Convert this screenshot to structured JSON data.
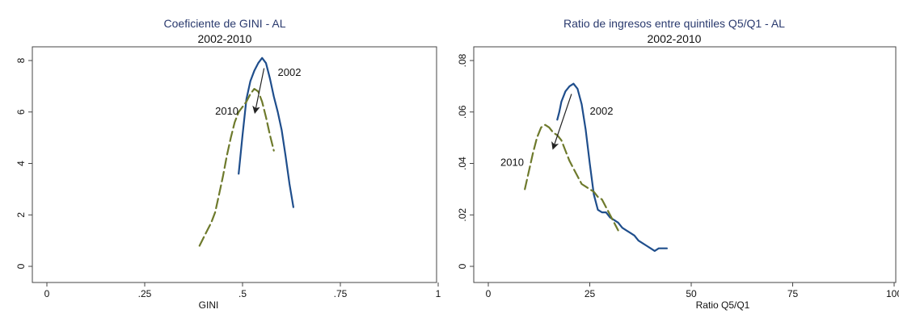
{
  "chart_data": [
    {
      "type": "line",
      "title": "Coeficiente de GINI - AL",
      "subtitle": "2002-2010",
      "xlabel": "GINI",
      "ylabel": "",
      "xlim": [
        0,
        1
      ],
      "ylim": [
        0,
        8
      ],
      "x_ticks": [
        0,
        0.25,
        0.5,
        0.75,
        1
      ],
      "x_tick_labels": [
        "0",
        ".25",
        ".5",
        ".75",
        "1"
      ],
      "y_ticks": [
        0,
        2,
        4,
        6,
        8
      ],
      "y_tick_labels": [
        "0",
        "2",
        "4",
        "6",
        "8"
      ],
      "grid": false,
      "series": [
        {
          "name": "2002",
          "color": "#1f4e8c",
          "style": "solid",
          "x": [
            0.49,
            0.5,
            0.51,
            0.52,
            0.53,
            0.54,
            0.55,
            0.56,
            0.57,
            0.58,
            0.59,
            0.6,
            0.61,
            0.62,
            0.63
          ],
          "y": [
            3.6,
            5.1,
            6.5,
            7.2,
            7.6,
            7.9,
            8.1,
            7.9,
            7.3,
            6.6,
            6.0,
            5.3,
            4.3,
            3.2,
            2.3
          ]
        },
        {
          "name": "2010",
          "color": "#6e7a2c",
          "style": "dashed",
          "x": [
            0.39,
            0.4,
            0.41,
            0.42,
            0.43,
            0.44,
            0.45,
            0.46,
            0.47,
            0.48,
            0.49,
            0.5,
            0.51,
            0.52,
            0.53,
            0.54,
            0.55,
            0.56,
            0.57,
            0.58
          ],
          "y": [
            0.8,
            1.1,
            1.4,
            1.7,
            2.1,
            2.8,
            3.5,
            4.3,
            5.0,
            5.6,
            6.0,
            6.2,
            6.4,
            6.7,
            6.9,
            6.8,
            6.4,
            5.8,
            5.1,
            4.5
          ]
        }
      ],
      "annotations": [
        {
          "text": "2002",
          "x": 0.59,
          "y": 7.4
        },
        {
          "text": "2010",
          "x": 0.43,
          "y": 5.9
        }
      ],
      "arrow": {
        "from": [
          0.555,
          7.7
        ],
        "to": [
          0.532,
          6.0
        ]
      }
    },
    {
      "type": "line",
      "title": "Ratio de ingresos entre quintiles Q5/Q1 - AL",
      "subtitle": "2002-2010",
      "xlabel": "Ratio Q5/Q1",
      "ylabel": "",
      "xlim": [
        0,
        100
      ],
      "ylim": [
        0,
        0.08
      ],
      "x_ticks": [
        0,
        25,
        50,
        75,
        100
      ],
      "x_tick_labels": [
        "0",
        "25",
        "50",
        "75",
        "100"
      ],
      "y_ticks": [
        0,
        0.02,
        0.04,
        0.06,
        0.08
      ],
      "y_tick_labels": [
        "0",
        ".02",
        ".04",
        ".06",
        ".08"
      ],
      "grid": false,
      "series": [
        {
          "name": "2002",
          "color": "#1f4e8c",
          "style": "solid",
          "x": [
            17,
            17.5,
            18,
            19,
            20,
            21,
            22,
            23,
            24,
            25,
            26,
            27,
            28,
            29,
            30,
            31,
            32,
            33,
            34,
            35,
            36,
            37,
            38,
            39,
            40,
            41,
            42,
            43,
            44
          ],
          "y": [
            0.057,
            0.06,
            0.064,
            0.068,
            0.07,
            0.071,
            0.069,
            0.063,
            0.053,
            0.04,
            0.028,
            0.022,
            0.021,
            0.021,
            0.019,
            0.018,
            0.017,
            0.015,
            0.014,
            0.013,
            0.012,
            0.01,
            0.009,
            0.008,
            0.007,
            0.006,
            0.007,
            0.007,
            0.007
          ]
        },
        {
          "name": "2010",
          "color": "#6e7a2c",
          "style": "dashed",
          "x": [
            9,
            10,
            11,
            12,
            13,
            14,
            15,
            16,
            17,
            18,
            19,
            20,
            21,
            22,
            23,
            24,
            25,
            26,
            27,
            28,
            29,
            30,
            31,
            32
          ],
          "y": [
            0.03,
            0.037,
            0.044,
            0.05,
            0.054,
            0.055,
            0.054,
            0.052,
            0.051,
            0.049,
            0.045,
            0.041,
            0.038,
            0.035,
            0.032,
            0.031,
            0.03,
            0.029,
            0.027,
            0.026,
            0.023,
            0.02,
            0.017,
            0.014
          ]
        }
      ],
      "annotations": [
        {
          "text": "2002",
          "x": 25,
          "y": 0.059
        },
        {
          "text": "2010",
          "x": 3,
          "y": 0.039
        }
      ],
      "arrow": {
        "from": [
          20.5,
          0.067
        ],
        "to": [
          16,
          0.046
        ]
      }
    }
  ]
}
